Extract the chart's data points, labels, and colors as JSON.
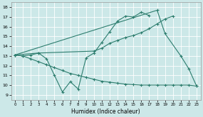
{
  "xlabel": "Humidex (Indice chaleur)",
  "xlim": [
    -0.5,
    23.5
  ],
  "ylim": [
    8.5,
    18.5
  ],
  "xticks": [
    0,
    1,
    2,
    3,
    4,
    5,
    6,
    7,
    8,
    9,
    10,
    11,
    12,
    13,
    14,
    15,
    16,
    17,
    18,
    19,
    20,
    21,
    22,
    23
  ],
  "yticks": [
    9,
    10,
    11,
    12,
    13,
    14,
    15,
    16,
    17,
    18
  ],
  "bg_color": "#cce8e8",
  "grid_color": "#ffffff",
  "line_color": "#2d7d6e",
  "line1_x": [
    0,
    1,
    2,
    3,
    4,
    5,
    6,
    7,
    8,
    9,
    10,
    11,
    12,
    13,
    14,
    15,
    16,
    17
  ],
  "line1_y": [
    13.1,
    13.0,
    13.1,
    13.3,
    12.7,
    11.0,
    9.3,
    10.35,
    9.6,
    12.8,
    13.3,
    14.4,
    15.5,
    16.6,
    17.1,
    17.0,
    17.5,
    17.15
  ],
  "line2_x": [
    0,
    18,
    19,
    21,
    22,
    23
  ],
  "line2_y": [
    13.1,
    17.7,
    15.3,
    13.0,
    11.7,
    9.9
  ],
  "line3_x": [
    0,
    3,
    10,
    11,
    12,
    13,
    14,
    15,
    16,
    17,
    18,
    19,
    20
  ],
  "line3_y": [
    13.1,
    13.3,
    13.5,
    13.8,
    14.3,
    14.6,
    14.9,
    15.1,
    15.4,
    15.8,
    16.3,
    16.8,
    17.1
  ],
  "line4_x": [
    0,
    1,
    2,
    3,
    4,
    5,
    6,
    7,
    8,
    9,
    10,
    11,
    12,
    13,
    14,
    15,
    16,
    17,
    18,
    19,
    20,
    21,
    22,
    23
  ],
  "line4_y": [
    13.1,
    13.0,
    12.7,
    12.4,
    12.1,
    11.8,
    11.5,
    11.2,
    11.0,
    10.8,
    10.6,
    10.4,
    10.3,
    10.2,
    10.1,
    10.05,
    10.0,
    10.0,
    10.0,
    10.0,
    10.0,
    10.0,
    10.0,
    9.9
  ]
}
